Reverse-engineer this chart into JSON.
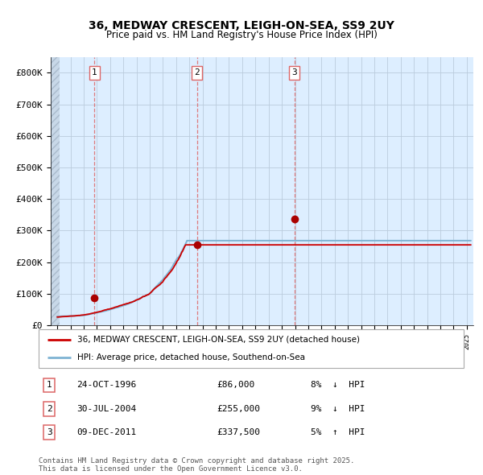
{
  "title": "36, MEDWAY CRESCENT, LEIGH-ON-SEA, SS9 2UY",
  "subtitle": "Price paid vs. HM Land Registry's House Price Index (HPI)",
  "legend_line1": "36, MEDWAY CRESCENT, LEIGH-ON-SEA, SS9 2UY (detached house)",
  "legend_line2": "HPI: Average price, detached house, Southend-on-Sea",
  "footer": "Contains HM Land Registry data © Crown copyright and database right 2025.\nThis data is licensed under the Open Government Licence v3.0.",
  "transactions": [
    {
      "num": 1,
      "date": "24-OCT-1996",
      "price": 86000,
      "pct": "8%",
      "dir": "↓",
      "x": 1996.81
    },
    {
      "num": 2,
      "date": "30-JUL-2004",
      "price": 255000,
      "pct": "9%",
      "dir": "↓",
      "x": 2004.58
    },
    {
      "num": 3,
      "date": "09-DEC-2011",
      "price": 337500,
      "pct": "5%",
      "dir": "↑",
      "x": 2011.94
    }
  ],
  "price_color": "#cc0000",
  "hpi_color": "#7fb3d3",
  "dashed_line_color": "#dd6666",
  "marker_color": "#aa0000",
  "background_color": "#ddeeff",
  "plot_bg_color": "#ddeeff",
  "grid_color": "#bbccdd",
  "ylim": [
    0,
    850000
  ],
  "xlim": [
    1993.5,
    2025.5
  ],
  "ytick_labels": [
    "£0",
    "£100K",
    "£200K",
    "£300K",
    "£400K",
    "£500K",
    "£600K",
    "£700K",
    "£800K"
  ],
  "ytick_values": [
    0,
    100000,
    200000,
    300000,
    400000,
    500000,
    600000,
    700000,
    800000
  ]
}
